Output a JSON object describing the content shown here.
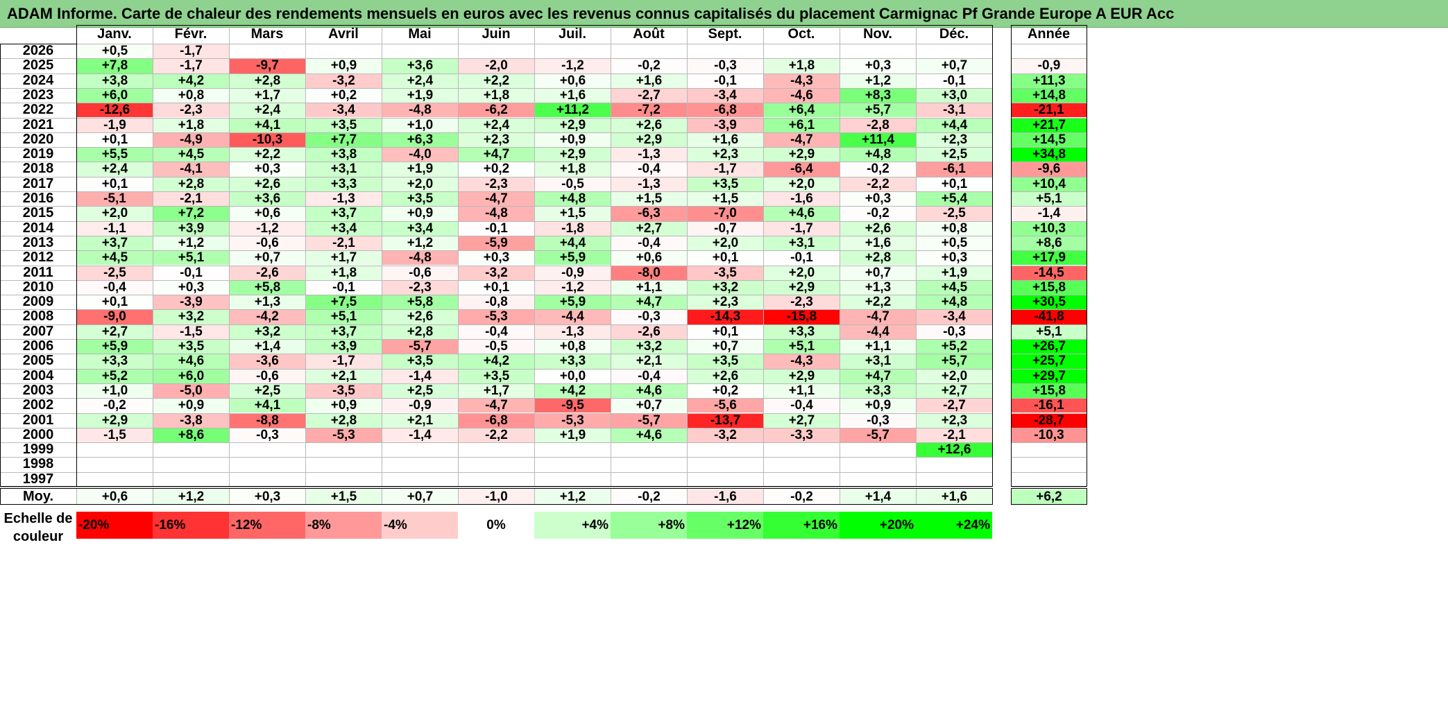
{
  "title": "ADAM Informe. Carte de chaleur des rendements mensuels en euros avec les revenus connus capitalisés du placement Carmignac Pf Grande Europe A EUR Acc",
  "chart_data": {
    "type": "heatmap",
    "months": [
      "Janv.",
      "Févr.",
      "Mars",
      "Avril",
      "Mai",
      "Juin",
      "Juil.",
      "Août",
      "Sept.",
      "Oct.",
      "Nov.",
      "Déc."
    ],
    "year_header": "Année",
    "rows": [
      {
        "year": "2026",
        "values": [
          "+0,5",
          "-1,7",
          "",
          "",
          "",
          "",
          "",
          "",
          "",
          "",
          "",
          ""
        ],
        "annual": ""
      },
      {
        "year": "2025",
        "values": [
          "+7,8",
          "-1,7",
          "-9,7",
          "+0,9",
          "+3,6",
          "-2,0",
          "-1,2",
          "-0,2",
          "-0,3",
          "+1,8",
          "+0,3",
          "+0,7"
        ],
        "annual": "-0,9"
      },
      {
        "year": "2024",
        "values": [
          "+3,8",
          "+4,2",
          "+2,8",
          "-3,2",
          "+2,4",
          "+2,2",
          "+0,6",
          "+1,6",
          "-0,1",
          "-4,3",
          "+1,2",
          "-0,1"
        ],
        "annual": "+11,3"
      },
      {
        "year": "2023",
        "values": [
          "+6,0",
          "+0,8",
          "+1,7",
          "+0,2",
          "+1,9",
          "+1,8",
          "+1,6",
          "-2,7",
          "-3,4",
          "-4,6",
          "+8,3",
          "+3,0"
        ],
        "annual": "+14,8"
      },
      {
        "year": "2022",
        "values": [
          "-12,6",
          "-2,3",
          "+2,4",
          "-3,4",
          "-4,8",
          "-6,2",
          "+11,2",
          "-7,2",
          "-6,8",
          "+6,4",
          "+5,7",
          "-3,1"
        ],
        "annual": "-21,1"
      },
      {
        "year": "2021",
        "values": [
          "-1,9",
          "+1,8",
          "+4,1",
          "+3,5",
          "+1,0",
          "+2,4",
          "+2,9",
          "+2,6",
          "-3,9",
          "+6,1",
          "-2,8",
          "+4,4"
        ],
        "annual": "+21,7"
      },
      {
        "year": "2020",
        "values": [
          "+0,1",
          "-4,9",
          "-10,3",
          "+7,7",
          "+6,3",
          "+2,3",
          "+0,9",
          "+2,9",
          "+1,6",
          "-4,7",
          "+11,4",
          "+2,3"
        ],
        "annual": "+14,5"
      },
      {
        "year": "2019",
        "values": [
          "+5,5",
          "+4,5",
          "+2,2",
          "+3,8",
          "-4,0",
          "+4,7",
          "+2,9",
          "-1,3",
          "+2,3",
          "+2,9",
          "+4,8",
          "+2,5"
        ],
        "annual": "+34,8"
      },
      {
        "year": "2018",
        "values": [
          "+2,4",
          "-4,1",
          "+0,3",
          "+3,1",
          "+1,9",
          "+0,2",
          "+1,8",
          "-0,4",
          "-1,7",
          "-6,4",
          "-0,2",
          "-6,1"
        ],
        "annual": "-9,6"
      },
      {
        "year": "2017",
        "values": [
          "+0,1",
          "+2,8",
          "+2,6",
          "+3,3",
          "+2,0",
          "-2,3",
          "-0,5",
          "-1,3",
          "+3,5",
          "+2,0",
          "-2,2",
          "+0,1"
        ],
        "annual": "+10,4"
      },
      {
        "year": "2016",
        "values": [
          "-5,1",
          "-2,1",
          "+3,6",
          "-1,3",
          "+3,5",
          "-4,7",
          "+4,8",
          "+1,5",
          "+1,5",
          "-1,6",
          "+0,3",
          "+5,4"
        ],
        "annual": "+5,1"
      },
      {
        "year": "2015",
        "values": [
          "+2,0",
          "+7,2",
          "+0,6",
          "+3,7",
          "+0,9",
          "-4,8",
          "+1,5",
          "-6,3",
          "-7,0",
          "+4,6",
          "-0,2",
          "-2,5"
        ],
        "annual": "-1,4"
      },
      {
        "year": "2014",
        "values": [
          "-1,1",
          "+3,9",
          "-1,2",
          "+3,4",
          "+3,4",
          "-0,1",
          "-1,8",
          "+2,7",
          "-0,7",
          "-1,7",
          "+2,6",
          "+0,8"
        ],
        "annual": "+10,3"
      },
      {
        "year": "2013",
        "values": [
          "+3,7",
          "+1,2",
          "-0,6",
          "-2,1",
          "+1,2",
          "-5,9",
          "+4,4",
          "-0,4",
          "+2,0",
          "+3,1",
          "+1,6",
          "+0,5"
        ],
        "annual": "+8,6"
      },
      {
        "year": "2012",
        "values": [
          "+4,5",
          "+5,1",
          "+0,7",
          "+1,7",
          "-4,8",
          "+0,3",
          "+5,9",
          "+0,6",
          "+0,1",
          "-0,1",
          "+2,8",
          "+0,3"
        ],
        "annual": "+17,9"
      },
      {
        "year": "2011",
        "values": [
          "-2,5",
          "-0,1",
          "-2,6",
          "+1,8",
          "-0,6",
          "-3,2",
          "-0,9",
          "-8,0",
          "-3,5",
          "+2,0",
          "+0,7",
          "+1,9"
        ],
        "annual": "-14,5"
      },
      {
        "year": "2010",
        "values": [
          "-0,4",
          "+0,3",
          "+5,8",
          "-0,1",
          "-2,3",
          "+0,1",
          "-1,2",
          "+1,1",
          "+3,2",
          "+2,9",
          "+1,3",
          "+4,5"
        ],
        "annual": "+15,8"
      },
      {
        "year": "2009",
        "values": [
          "+0,1",
          "-3,9",
          "+1,3",
          "+7,5",
          "+5,8",
          "-0,8",
          "+5,9",
          "+4,7",
          "+2,3",
          "-2,3",
          "+2,2",
          "+4,8"
        ],
        "annual": "+30,5"
      },
      {
        "year": "2008",
        "values": [
          "-9,0",
          "+3,2",
          "-4,2",
          "+5,1",
          "+2,6",
          "-5,3",
          "-4,4",
          "-0,3",
          "-14,3",
          "-15,8",
          "-4,7",
          "-3,4"
        ],
        "annual": "-41,8"
      },
      {
        "year": "2007",
        "values": [
          "+2,7",
          "-1,5",
          "+3,2",
          "+3,7",
          "+2,8",
          "-0,4",
          "-1,3",
          "-2,6",
          "+0,1",
          "+3,3",
          "-4,4",
          "-0,3"
        ],
        "annual": "+5,1"
      },
      {
        "year": "2006",
        "values": [
          "+5,9",
          "+3,5",
          "+1,4",
          "+3,9",
          "-5,7",
          "-0,5",
          "+0,8",
          "+3,2",
          "+0,7",
          "+5,1",
          "+1,1",
          "+5,2"
        ],
        "annual": "+26,7"
      },
      {
        "year": "2005",
        "values": [
          "+3,3",
          "+4,6",
          "-3,6",
          "-1,7",
          "+3,5",
          "+4,2",
          "+3,3",
          "+2,1",
          "+3,5",
          "-4,3",
          "+3,1",
          "+5,7"
        ],
        "annual": "+25,7"
      },
      {
        "year": "2004",
        "values": [
          "+5,2",
          "+6,0",
          "-0,6",
          "+2,1",
          "-1,4",
          "+3,5",
          "+0,0",
          "-0,4",
          "+2,6",
          "+2,9",
          "+4,7",
          "+2,0"
        ],
        "annual": "+29,7"
      },
      {
        "year": "2003",
        "values": [
          "+1,0",
          "-5,0",
          "+2,5",
          "-3,5",
          "+2,5",
          "+1,7",
          "+4,2",
          "+4,6",
          "+0,2",
          "+1,1",
          "+3,3",
          "+2,7"
        ],
        "annual": "+15,8"
      },
      {
        "year": "2002",
        "values": [
          "-0,2",
          "+0,9",
          "+4,1",
          "+0,9",
          "-0,9",
          "-4,7",
          "-9,5",
          "+0,7",
          "-5,6",
          "-0,4",
          "+0,9",
          "-2,7"
        ],
        "annual": "-16,1"
      },
      {
        "year": "2001",
        "values": [
          "+2,9",
          "-3,8",
          "-8,8",
          "+2,8",
          "+2,1",
          "-6,8",
          "-5,3",
          "-5,7",
          "-13,7",
          "+2,7",
          "-0,3",
          "+2,3"
        ],
        "annual": "-28,7"
      },
      {
        "year": "2000",
        "values": [
          "-1,5",
          "+8,6",
          "-0,3",
          "-5,3",
          "-1,4",
          "-2,2",
          "+1,9",
          "+4,6",
          "-3,2",
          "-3,3",
          "-5,7",
          "-2,1"
        ],
        "annual": "-10,3"
      },
      {
        "year": "1999",
        "values": [
          "",
          "",
          "",
          "",
          "",
          "",
          "",
          "",
          "",
          "",
          "",
          "+12,6"
        ],
        "annual": ""
      },
      {
        "year": "1998",
        "values": [
          "",
          "",
          "",
          "",
          "",
          "",
          "",
          "",
          "",
          "",
          "",
          ""
        ],
        "annual": ""
      },
      {
        "year": "1997",
        "values": [
          "",
          "",
          "",
          "",
          "",
          "",
          "",
          "",
          "",
          "",
          "",
          ""
        ],
        "annual": ""
      }
    ],
    "average_row": {
      "label": "Moy.",
      "values": [
        "+0,6",
        "+1,2",
        "+0,3",
        "+1,5",
        "+0,7",
        "-1,0",
        "+1,2",
        "-0,2",
        "-1,6",
        "-0,2",
        "+1,4",
        "+1,6"
      ],
      "annual": "+6,2"
    },
    "color_scale": {
      "label_line1": "Echelle de",
      "label_line2": "couleur",
      "stops": [
        "-20%",
        "-16%",
        "-12%",
        "-8%",
        "-4%",
        "0%",
        "+4%",
        "+8%",
        "+12%",
        "+16%",
        "+20%",
        "+24%"
      ],
      "stop_values": [
        -20,
        -16,
        -12,
        -8,
        -4,
        0,
        4,
        8,
        12,
        16,
        20,
        24
      ],
      "negative_color": "#ff0000",
      "neutral_color": "#ffffff",
      "positive_color": "#00ff00"
    }
  }
}
